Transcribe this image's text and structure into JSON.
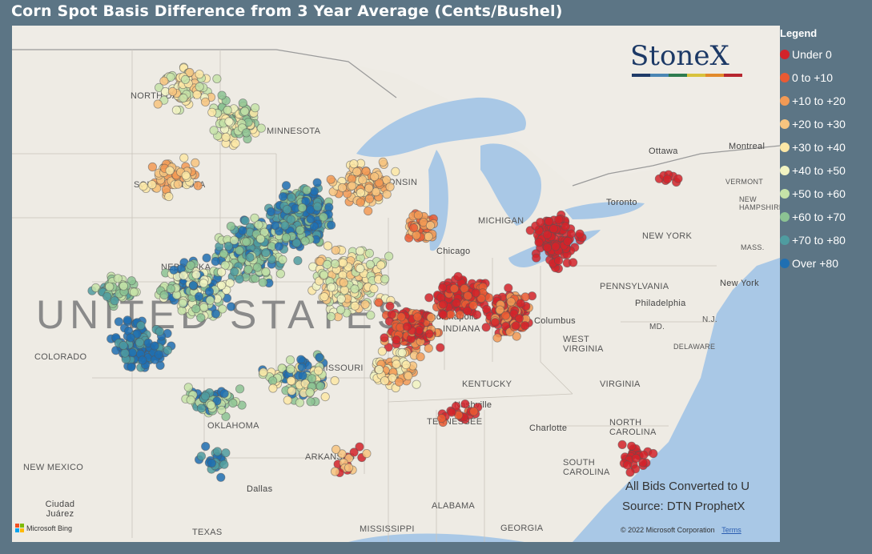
{
  "title": "Corn Spot Basis Difference from 3 Year Average (Cents/Bushel)",
  "logo": {
    "text": "StoneX",
    "bar_colors": [
      "#1f3a68",
      "#4b86b4",
      "#2e7b4f",
      "#d8c23d",
      "#e28a2b",
      "#b7262f"
    ]
  },
  "legend": {
    "title": "Legend",
    "items": [
      {
        "label": "Under 0",
        "color": "#d2232a"
      },
      {
        "label": "0 to +10",
        "color": "#ea5a33"
      },
      {
        "label": "+10 to +20",
        "color": "#f29a55"
      },
      {
        "label": "+20 to +30",
        "color": "#f7c47f"
      },
      {
        "label": "+30 to +40",
        "color": "#fbe7a6"
      },
      {
        "label": "+40 to +50",
        "color": "#f1f3c2"
      },
      {
        "label": "+50 to +60",
        "color": "#c6e3a8"
      },
      {
        "label": "+60 to +70",
        "color": "#8cc393"
      },
      {
        "label": "+70 to +80",
        "color": "#4f9ca0"
      },
      {
        "label": "Over +80",
        "color": "#1f6fb2"
      }
    ]
  },
  "notes": {
    "converted": "All Bids Converted to U",
    "source": "Source: DTN ProphetX"
  },
  "attribution": {
    "bing": "Microsoft Bing",
    "copyright": "© 2022 Microsoft Corporation",
    "terms": "Terms"
  },
  "map_labels": {
    "country": "UNITED STATES",
    "states": {
      "north_dakota": "NORTH DAKOTA",
      "south_dakota": "SOUTH DAKOTA",
      "minnesota": "MINNESOTA",
      "wisconsin": "WISCONSIN",
      "michigan": "MICHIGAN",
      "nebraska": "NEBRASKA",
      "colorado": "COLORADO",
      "missouri": "MISSOURI",
      "indiana": "INDIANA",
      "kentucky": "KENTUCKY",
      "tennessee": "TENNESSEE",
      "oklahoma": "OKLAHOMA",
      "arkansas": "ARKANSAS",
      "texas": "TEXAS",
      "mississippi": "MISSISSIPPI",
      "alabama": "ALABAMA",
      "georgia": "GEORGIA",
      "new_mexico": "NEW MEXICO",
      "west_virginia": "WEST VIRGINIA",
      "virginia": "VIRGINIA",
      "north_carolina": "NORTH CAROLINA",
      "south_carolina": "SOUTH CAROLINA",
      "pennsylvania": "PENNSYLVANIA",
      "new_york": "NEW YORK",
      "vermont": "VERMONT",
      "new_hampshire": "NEW HAMPSHIRE",
      "mass": "MASS.",
      "md": "MD.",
      "delaware": "DELAWARE",
      "nj": "N.J."
    },
    "cities": {
      "ottawa": "Ottawa",
      "montreal": "Montreal",
      "toronto": "Toronto",
      "chicago": "Chicago",
      "columbus": "Columbus",
      "indianapolis": "Indianapolis",
      "nashville": "Nashville",
      "charlotte": "Charlotte",
      "philadelphia": "Philadelphia",
      "new_york_city": "New York",
      "dallas": "Dallas",
      "ciudad_juarez": "Ciudad Juárez"
    }
  }
}
